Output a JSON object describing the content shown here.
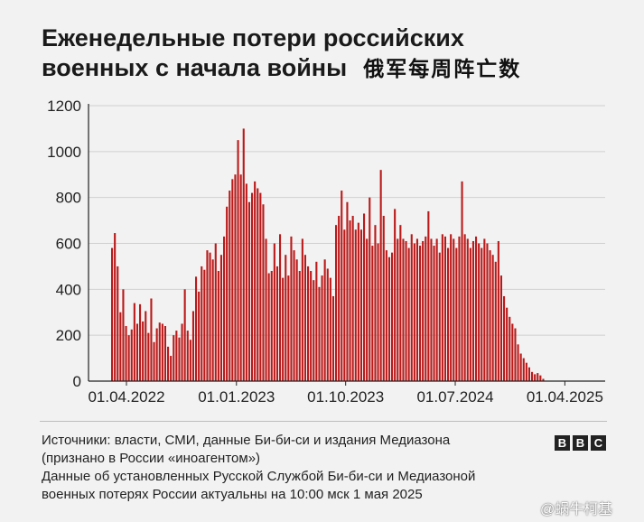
{
  "title_lines": [
    "Еженедельные потери российских",
    "военных с начала войны"
  ],
  "title_cn": "俄军每周阵亡数",
  "source_lines": [
    "Источники: власти, СМИ, данные Би-би-си и издания Медиазона",
    "(признано в России «иноагентом»)",
    "Данные об установленных Русской Службой Би-би-си и Медиазоной",
    "военных потерях России актуальны на 10:00 мск 1 мая 2025"
  ],
  "brand": {
    "letters": [
      "B",
      "B",
      "C"
    ]
  },
  "watermark": "@蜗牛柯基",
  "colors": {
    "bar": "#bb1919",
    "text": "#222222",
    "background": "#f2f2f2"
  },
  "chart_data": {
    "type": "bar",
    "title": "Еженедельные потери российских военных с начала войны",
    "xlabel": "",
    "ylabel": "",
    "ylim": [
      0,
      1200
    ],
    "yticks": [
      "0",
      "200",
      "400",
      "600",
      "800",
      "1000",
      "1200"
    ],
    "xticks": [
      "01.04.2022",
      "01.01.2023",
      "01.10.2023",
      "01.07.2024",
      "01.04.2025"
    ],
    "x_start": "2022-02-24",
    "x_step": "1 week",
    "values": [
      580,
      645,
      500,
      300,
      400,
      240,
      200,
      225,
      340,
      250,
      335,
      260,
      305,
      210,
      360,
      170,
      230,
      255,
      250,
      240,
      150,
      110,
      200,
      220,
      190,
      250,
      400,
      220,
      180,
      305,
      455,
      390,
      500,
      485,
      570,
      560,
      530,
      600,
      480,
      550,
      630,
      760,
      830,
      880,
      900,
      1050,
      900,
      1100,
      860,
      780,
      820,
      870,
      840,
      820,
      770,
      620,
      470,
      480,
      600,
      500,
      640,
      450,
      550,
      460,
      630,
      570,
      530,
      480,
      620,
      550,
      500,
      480,
      440,
      520,
      410,
      460,
      530,
      490,
      450,
      370,
      680,
      720,
      830,
      660,
      780,
      700,
      720,
      660,
      690,
      660,
      730,
      620,
      800,
      590,
      680,
      600,
      920,
      720,
      570,
      540,
      560,
      750,
      620,
      680,
      620,
      610,
      580,
      640,
      600,
      620,
      590,
      610,
      630,
      740,
      620,
      590,
      620,
      560,
      640,
      630,
      580,
      640,
      620,
      580,
      630,
      870,
      640,
      620,
      580,
      610,
      630,
      600,
      580,
      620,
      600,
      570,
      550,
      520,
      610,
      460,
      370,
      320,
      280,
      250,
      230,
      160,
      120,
      100,
      80,
      60,
      40,
      30,
      35,
      25,
      10
    ]
  }
}
